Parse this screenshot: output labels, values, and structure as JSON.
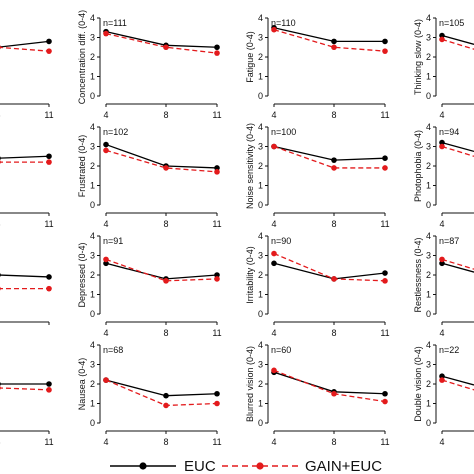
{
  "chart_data": {
    "type": "line",
    "grid": false,
    "legend_placement": "bottom",
    "colors": {
      "EUC": "#000000",
      "GAIN+EUC": "#e31a1c"
    },
    "legend": [
      {
        "name": "EUC",
        "style": "solid",
        "color": "#000000"
      },
      {
        "name": "GAIN+EUC",
        "style": "dashed",
        "color": "#e31a1c"
      }
    ],
    "x_ticks": [
      "4",
      "8",
      "11"
    ],
    "y_ticks": [
      "0",
      "1",
      "2",
      "3",
      "4"
    ],
    "ylim": [
      0,
      4
    ],
    "x": [
      4,
      8,
      11
    ],
    "panels": [
      {
        "row": 0,
        "col": 0,
        "ylabel": "",
        "n_label": "",
        "show_y_axis": false,
        "x_ticks_visible": [
          false,
          true,
          true
        ],
        "x_tick_overrides": {
          "8": "8"
        },
        "series": [
          {
            "name": "EUC",
            "values": [
              null,
              2.5,
              2.8
            ]
          },
          {
            "name": "GAIN+EUC",
            "values": [
              null,
              2.5,
              2.3
            ]
          }
        ]
      },
      {
        "row": 0,
        "col": 1,
        "ylabel": "Concentration diff. (0-4)",
        "n_label": "n=111",
        "series": [
          {
            "name": "EUC",
            "values": [
              3.3,
              2.6,
              2.5
            ]
          },
          {
            "name": "GAIN+EUC",
            "values": [
              3.2,
              2.5,
              2.2
            ]
          }
        ]
      },
      {
        "row": 0,
        "col": 2,
        "ylabel": "Fatigue (0-4)",
        "n_label": "n=110",
        "series": [
          {
            "name": "EUC",
            "values": [
              3.5,
              2.8,
              2.8
            ]
          },
          {
            "name": "GAIN+EUC",
            "values": [
              3.4,
              2.5,
              2.3
            ]
          }
        ]
      },
      {
        "row": 0,
        "col": 3,
        "ylabel": "Thinking slow (0-4)",
        "n_label": "n=105",
        "series": [
          {
            "name": "EUC",
            "values": [
              3.1,
              null,
              null
            ]
          },
          {
            "name": "GAIN+EUC",
            "values": [
              2.9,
              null,
              null
            ]
          }
        ]
      },
      {
        "row": 1,
        "col": 0,
        "ylabel": "",
        "n_label": "",
        "show_y_axis": false,
        "x_ticks_visible": [
          false,
          true,
          true
        ],
        "series": [
          {
            "name": "EUC",
            "values": [
              null,
              2.4,
              2.5
            ]
          },
          {
            "name": "GAIN+EUC",
            "values": [
              null,
              2.2,
              2.2
            ]
          }
        ]
      },
      {
        "row": 1,
        "col": 1,
        "ylabel": "Frustrated (0-4)",
        "n_label": "n=102",
        "series": [
          {
            "name": "EUC",
            "values": [
              3.1,
              2.0,
              1.9
            ]
          },
          {
            "name": "GAIN+EUC",
            "values": [
              2.8,
              1.9,
              1.7
            ]
          }
        ]
      },
      {
        "row": 1,
        "col": 2,
        "ylabel": "Noise sensitivity (0-4)",
        "n_label": "n=100",
        "series": [
          {
            "name": "EUC",
            "values": [
              3.0,
              2.3,
              2.4
            ]
          },
          {
            "name": "GAIN+EUC",
            "values": [
              3.0,
              1.9,
              1.9
            ]
          }
        ]
      },
      {
        "row": 1,
        "col": 3,
        "ylabel": "Photophobia (0-4)",
        "n_label": "n=94",
        "series": [
          {
            "name": "EUC",
            "values": [
              3.2,
              null,
              null
            ]
          },
          {
            "name": "GAIN+EUC",
            "values": [
              3.0,
              null,
              null
            ]
          }
        ]
      },
      {
        "row": 2,
        "col": 0,
        "ylabel": "",
        "n_label": "",
        "show_y_axis": false,
        "x_ticks_visible": [
          false,
          false,
          false
        ],
        "series": [
          {
            "name": "EUC",
            "values": [
              null,
              2.0,
              1.9
            ]
          },
          {
            "name": "GAIN+EUC",
            "values": [
              null,
              1.3,
              1.3
            ]
          }
        ]
      },
      {
        "row": 2,
        "col": 1,
        "ylabel": "Depressed (0-4)",
        "n_label": "n=91",
        "series": [
          {
            "name": "EUC",
            "values": [
              2.6,
              1.8,
              2.0
            ]
          },
          {
            "name": "GAIN+EUC",
            "values": [
              2.8,
              1.7,
              1.8
            ]
          }
        ]
      },
      {
        "row": 2,
        "col": 2,
        "ylabel": "Irritability (0-4)",
        "n_label": "n=90",
        "series": [
          {
            "name": "EUC",
            "values": [
              2.6,
              1.8,
              2.1
            ]
          },
          {
            "name": "GAIN+EUC",
            "values": [
              3.1,
              1.8,
              1.7
            ]
          }
        ]
      },
      {
        "row": 2,
        "col": 3,
        "ylabel": "Restlessness (0-4)",
        "n_label": "n=87",
        "series": [
          {
            "name": "EUC",
            "values": [
              2.6,
              null,
              null
            ]
          },
          {
            "name": "GAIN+EUC",
            "values": [
              2.8,
              null,
              null
            ]
          }
        ]
      },
      {
        "row": 3,
        "col": 0,
        "ylabel": "",
        "n_label": "",
        "show_y_axis": false,
        "x_ticks_visible": [
          false,
          true,
          true
        ],
        "series": [
          {
            "name": "EUC",
            "values": [
              null,
              2.0,
              2.0
            ]
          },
          {
            "name": "GAIN+EUC",
            "values": [
              null,
              1.8,
              1.7
            ]
          }
        ]
      },
      {
        "row": 3,
        "col": 1,
        "ylabel": "Nausea (0-4)",
        "n_label": "n=68",
        "series": [
          {
            "name": "EUC",
            "values": [
              2.2,
              1.4,
              1.5
            ]
          },
          {
            "name": "GAIN+EUC",
            "values": [
              2.2,
              0.9,
              1.0
            ]
          }
        ]
      },
      {
        "row": 3,
        "col": 2,
        "ylabel": "Blurred vision (0-4)",
        "n_label": "n=60",
        "series": [
          {
            "name": "EUC",
            "values": [
              2.6,
              1.6,
              1.5
            ]
          },
          {
            "name": "GAIN+EUC",
            "values": [
              2.7,
              1.5,
              1.1
            ]
          }
        ]
      },
      {
        "row": 3,
        "col": 3,
        "ylabel": "Double vision (0-4)",
        "n_label": "n=22",
        "series": [
          {
            "name": "EUC",
            "values": [
              2.4,
              null,
              null
            ]
          },
          {
            "name": "GAIN+EUC",
            "values": [
              2.2,
              null,
              null
            ]
          }
        ]
      }
    ]
  }
}
